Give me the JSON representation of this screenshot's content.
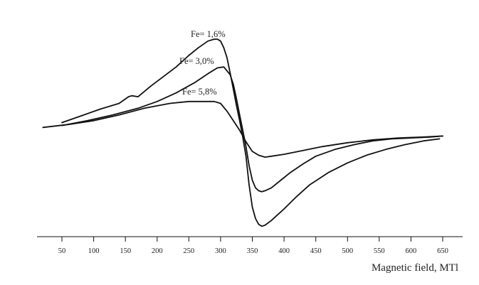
{
  "chart_data": {
    "type": "line",
    "title": "",
    "xlabel": "Magnetic field, MTl",
    "ylabel": "",
    "xlim": [
      20,
      660
    ],
    "ylim": [
      -1.05,
      1.05
    ],
    "grid": false,
    "xticks": [
      50,
      100,
      150,
      200,
      250,
      300,
      350,
      400,
      450,
      500,
      550,
      600,
      650
    ],
    "series": [
      {
        "name": "Fe= 1,6%",
        "label": "Fe= 1,6%",
        "x": [
          50,
          80,
          110,
          140,
          155,
          160,
          170,
          190,
          210,
          230,
          250,
          265,
          280,
          290,
          295,
          300,
          305,
          310,
          315,
          320,
          325,
          330,
          335,
          340,
          345,
          350,
          355,
          360,
          365,
          370,
          380,
          390,
          400,
          420,
          440,
          470,
          500,
          530,
          560,
          590,
          620,
          645
        ],
        "y": [
          0.1,
          0.17,
          0.24,
          0.3,
          0.37,
          0.38,
          0.37,
          0.48,
          0.58,
          0.68,
          0.8,
          0.88,
          0.95,
          0.97,
          0.97,
          0.95,
          0.88,
          0.78,
          0.62,
          0.45,
          0.28,
          0.12,
          -0.05,
          -0.25,
          -0.55,
          -0.78,
          -0.9,
          -0.96,
          -0.98,
          -0.97,
          -0.92,
          -0.86,
          -0.8,
          -0.67,
          -0.55,
          -0.42,
          -0.32,
          -0.24,
          -0.18,
          -0.13,
          -0.09,
          -0.07
        ]
      },
      {
        "name": "Fe= 3,0%",
        "label": "Fe= 3,0%",
        "x": [
          50,
          90,
          130,
          170,
          200,
          230,
          260,
          280,
          295,
          305,
          315,
          320,
          325,
          330,
          335,
          340,
          345,
          350,
          355,
          360,
          365,
          370,
          380,
          395,
          410,
          430,
          450,
          480,
          510,
          540,
          570,
          600,
          630,
          650
        ],
        "y": [
          0.07,
          0.12,
          0.18,
          0.25,
          0.32,
          0.41,
          0.52,
          0.61,
          0.67,
          0.68,
          0.6,
          0.5,
          0.35,
          0.18,
          0.02,
          -0.15,
          -0.35,
          -0.5,
          -0.58,
          -0.61,
          -0.62,
          -0.61,
          -0.58,
          -0.5,
          -0.42,
          -0.33,
          -0.25,
          -0.18,
          -0.13,
          -0.09,
          -0.07,
          -0.06,
          -0.05,
          -0.04
        ]
      },
      {
        "name": "Fe= 5,8%",
        "label": "Fe= 5,8%",
        "x": [
          20,
          60,
          100,
          140,
          180,
          220,
          250,
          270,
          290,
          300,
          310,
          320,
          330,
          340,
          350,
          360,
          370,
          380,
          400,
          430,
          460,
          500,
          540,
          580,
          620,
          650
        ],
        "y": [
          0.05,
          0.08,
          0.12,
          0.18,
          0.25,
          0.3,
          0.32,
          0.32,
          0.32,
          0.3,
          0.22,
          0.12,
          0.02,
          -0.1,
          -0.2,
          -0.24,
          -0.26,
          -0.25,
          -0.23,
          -0.19,
          -0.15,
          -0.11,
          -0.08,
          -0.06,
          -0.05,
          -0.04
        ]
      }
    ]
  }
}
